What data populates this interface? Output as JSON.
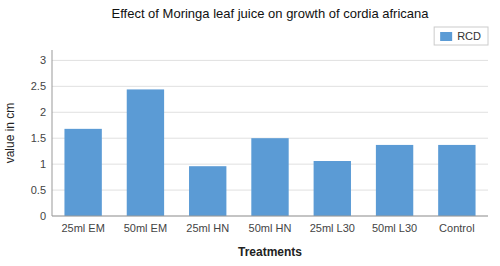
{
  "chart_data": {
    "type": "bar",
    "title": "Effect of Moringa leaf juice on growth of cordia africana",
    "categories": [
      "25ml EM",
      "50ml EM",
      "25ml HN",
      "50ml HN",
      "25ml L30",
      "50ml L30",
      "Control"
    ],
    "series": [
      {
        "name": "RCD",
        "color": "#5b9bd5",
        "values": [
          1.68,
          2.44,
          0.96,
          1.5,
          1.06,
          1.37,
          1.37
        ]
      }
    ],
    "xlabel": "Treatments",
    "ylabel": "value in cm",
    "ylim": [
      0,
      3.2
    ],
    "yticks": [
      0,
      0.5,
      1,
      1.5,
      2,
      2.5,
      3
    ],
    "grid": true,
    "legend": "upper right"
  }
}
